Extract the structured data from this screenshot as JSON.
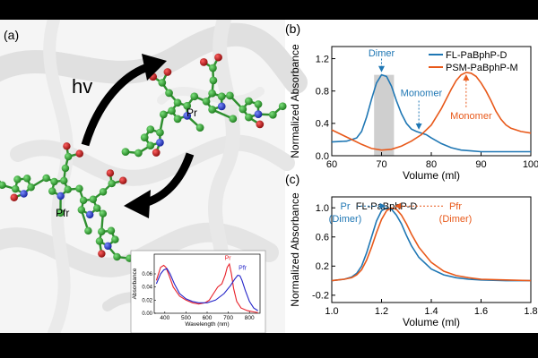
{
  "panels": {
    "a": {
      "label": "(a)",
      "hv": "hv",
      "pr": "Pr",
      "pfr": "Pfr"
    },
    "b": {
      "label": "(b)"
    },
    "c": {
      "label": "(c)"
    }
  },
  "colors": {
    "blue": "#1f77b4",
    "orange": "#e8591a",
    "inset_red": "#e8212a",
    "inset_blue": "#2424c8",
    "gray_band": "#cfcfcf"
  },
  "chart_data": [
    {
      "type": "line",
      "panel": "b",
      "xlabel": "Volume (ml)",
      "ylabel": "Normalized Absorbance",
      "xlim": [
        60,
        100
      ],
      "ylim": [
        0,
        1.35
      ],
      "xticks": [
        60,
        70,
        80,
        90,
        100
      ],
      "yticks": [
        0.0,
        0.4,
        0.8,
        1.2
      ],
      "legend": "top-right",
      "series": [
        {
          "name": "FL-PaBphP-D",
          "color": "#1f77b4",
          "x": [
            60,
            63,
            65,
            66,
            67,
            68,
            69,
            70,
            71,
            72,
            73,
            74,
            75,
            76,
            77,
            78,
            79,
            80,
            82,
            84,
            86,
            88,
            90,
            92,
            94,
            96,
            98,
            100
          ],
          "y": [
            0.17,
            0.18,
            0.22,
            0.3,
            0.48,
            0.7,
            0.9,
            1.0,
            0.98,
            0.86,
            0.68,
            0.52,
            0.4,
            0.33,
            0.3,
            0.28,
            0.26,
            0.22,
            0.15,
            0.1,
            0.07,
            0.06,
            0.05,
            0.05,
            0.05,
            0.05,
            0.05,
            0.05
          ]
        },
        {
          "name": "PSM-PaBphP-M",
          "color": "#e8591a",
          "x": [
            60,
            62,
            64,
            66,
            68,
            70,
            72,
            74,
            76,
            78,
            80,
            82,
            84,
            85,
            86,
            87,
            88,
            89,
            90,
            91,
            92,
            93,
            94,
            95,
            96,
            98,
            100
          ],
          "y": [
            0.32,
            0.26,
            0.2,
            0.14,
            0.09,
            0.07,
            0.08,
            0.12,
            0.18,
            0.26,
            0.38,
            0.58,
            0.82,
            0.93,
            1.0,
            1.03,
            1.02,
            0.98,
            0.9,
            0.8,
            0.68,
            0.55,
            0.45,
            0.38,
            0.34,
            0.3,
            0.28
          ]
        }
      ],
      "band": [
        68.5,
        72.5
      ],
      "annotations": [
        {
          "text": "Dimer",
          "x": 70,
          "y": 1.27,
          "color": "#1f77b4"
        },
        {
          "text": "Monomer",
          "x": 78,
          "y": 0.78,
          "color": "#1f77b4"
        },
        {
          "text": "Monomer",
          "x": 88,
          "y": 0.5,
          "color": "#e8591a"
        }
      ]
    },
    {
      "type": "line",
      "panel": "c",
      "title": "FL-PaBphP-D",
      "xlabel": "Volume (ml)",
      "ylabel": "Normalized Absorbance",
      "xlim": [
        1.0,
        1.8
      ],
      "ylim": [
        -0.3,
        1.15
      ],
      "xticks": [
        1.0,
        1.2,
        1.4,
        1.6,
        1.8
      ],
      "yticks": [
        -0.2,
        0.2,
        0.6,
        1.0
      ],
      "series": [
        {
          "name": "Pr (Dimer)",
          "color": "#1f77b4",
          "x": [
            1.0,
            1.05,
            1.08,
            1.1,
            1.12,
            1.14,
            1.16,
            1.18,
            1.2,
            1.22,
            1.24,
            1.26,
            1.28,
            1.3,
            1.32,
            1.35,
            1.4,
            1.45,
            1.5,
            1.55,
            1.6,
            1.7,
            1.8
          ],
          "y": [
            0.0,
            0.02,
            0.05,
            0.1,
            0.2,
            0.38,
            0.6,
            0.82,
            0.96,
            1.0,
            0.98,
            0.9,
            0.78,
            0.62,
            0.48,
            0.32,
            0.16,
            0.08,
            0.04,
            0.02,
            0.01,
            0.0,
            0.0
          ]
        },
        {
          "name": "Pfr (Dimer)",
          "color": "#e8591a",
          "x": [
            1.0,
            1.05,
            1.08,
            1.1,
            1.12,
            1.14,
            1.16,
            1.18,
            1.2,
            1.22,
            1.24,
            1.26,
            1.28,
            1.3,
            1.32,
            1.35,
            1.4,
            1.45,
            1.5,
            1.55,
            1.6,
            1.7,
            1.8
          ],
          "y": [
            0.0,
            0.02,
            0.04,
            0.08,
            0.15,
            0.28,
            0.46,
            0.66,
            0.84,
            0.96,
            1.0,
            0.98,
            0.9,
            0.78,
            0.64,
            0.46,
            0.25,
            0.13,
            0.07,
            0.04,
            0.02,
            0.01,
            0.0
          ]
        }
      ],
      "annotations": [
        {
          "text": "Pr",
          "color": "#1f77b4"
        },
        {
          "text": "(Dimer)",
          "color": "#1f77b4"
        },
        {
          "text": "Pfr",
          "color": "#e8591a"
        },
        {
          "text": "(Dimer)",
          "color": "#e8591a"
        }
      ]
    },
    {
      "type": "line",
      "panel": "a-inset",
      "xlabel": "Wavelength (nm)",
      "ylabel": "Absorbance",
      "xlim": [
        350,
        850
      ],
      "ylim": [
        0,
        0.09
      ],
      "xticks": [
        400,
        500,
        600,
        700,
        800
      ],
      "yticks": [
        0.0,
        0.02,
        0.04,
        0.06
      ],
      "series": [
        {
          "name": "Pr",
          "color": "#e8212a",
          "x": [
            360,
            380,
            395,
            405,
            420,
            440,
            470,
            500,
            530,
            560,
            590,
            610,
            630,
            650,
            670,
            685,
            695,
            705,
            715,
            725,
            740,
            760,
            790,
            820,
            840
          ],
          "y": [
            0.05,
            0.07,
            0.073,
            0.07,
            0.058,
            0.04,
            0.026,
            0.02,
            0.016,
            0.014,
            0.016,
            0.02,
            0.03,
            0.04,
            0.045,
            0.058,
            0.07,
            0.075,
            0.06,
            0.038,
            0.018,
            0.008,
            0.004,
            0.002,
            0.001
          ]
        },
        {
          "name": "Pfr",
          "color": "#2424c8",
          "x": [
            360,
            380,
            395,
            410,
            425,
            445,
            470,
            500,
            530,
            560,
            600,
            640,
            680,
            710,
            730,
            745,
            755,
            765,
            780,
            800,
            820,
            840
          ],
          "y": [
            0.045,
            0.06,
            0.066,
            0.068,
            0.06,
            0.045,
            0.03,
            0.022,
            0.018,
            0.016,
            0.016,
            0.02,
            0.03,
            0.042,
            0.052,
            0.058,
            0.057,
            0.05,
            0.035,
            0.018,
            0.008,
            0.004
          ]
        }
      ]
    }
  ]
}
